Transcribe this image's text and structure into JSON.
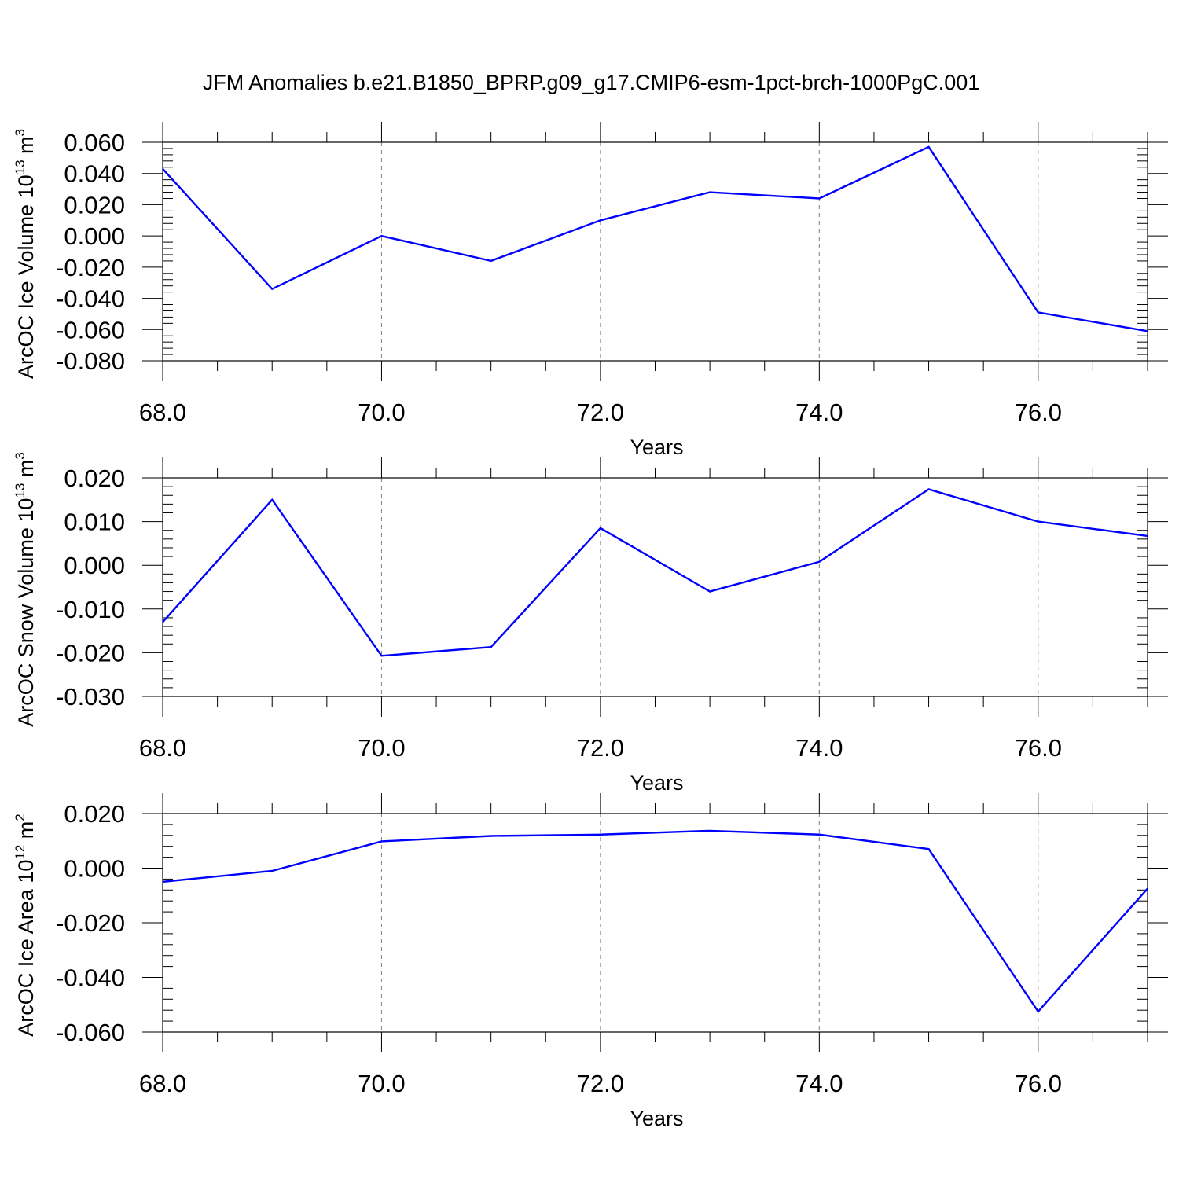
{
  "title": "JFM Anomalies b.e21.B1850_BPRP.g09_g17.CMIP6-esm-1pct-brch-1000PgC.001",
  "colors": {
    "line": "#0000ff",
    "axis": "#000000",
    "grid": "#808080",
    "background": "#ffffff"
  },
  "chart_data": [
    {
      "type": "line",
      "xlabel": "Years",
      "ylabel": {
        "prefix": "ArcOC Ice Volume 10",
        "exponent": "13",
        "unit": " m",
        "unit_exponent": "3"
      },
      "x": [
        68,
        69,
        70,
        71,
        72,
        73,
        74,
        75,
        76,
        77
      ],
      "xlim": [
        68,
        77
      ],
      "x_ticks": [
        "68.0",
        "70.0",
        "72.0",
        "74.0",
        "76.0"
      ],
      "x_tick_values": [
        68,
        70,
        72,
        74,
        76
      ],
      "ylim": [
        -0.08,
        0.06
      ],
      "y_ticks": [
        "0.060",
        "0.040",
        "0.020",
        "0.000",
        "-0.020",
        "-0.040",
        "-0.060",
        "-0.080"
      ],
      "y_tick_values": [
        0.06,
        0.04,
        0.02,
        0.0,
        -0.02,
        -0.04,
        -0.06,
        -0.08
      ],
      "vertical_dashed_grid": true,
      "series": [
        {
          "values": [
            0.043,
            -0.034,
            0.0,
            -0.016,
            0.01,
            0.028,
            0.024,
            0.057,
            -0.049,
            -0.061
          ]
        }
      ]
    },
    {
      "type": "line",
      "xlabel": "Years",
      "ylabel": {
        "prefix": "ArcOC Snow Volume 10",
        "exponent": "13",
        "unit": " m",
        "unit_exponent": "3"
      },
      "x": [
        68,
        69,
        70,
        71,
        72,
        73,
        74,
        75,
        76,
        77
      ],
      "xlim": [
        68,
        77
      ],
      "x_ticks": [
        "68.0",
        "70.0",
        "72.0",
        "74.0",
        "76.0"
      ],
      "x_tick_values": [
        68,
        70,
        72,
        74,
        76
      ],
      "ylim": [
        -0.03,
        0.02
      ],
      "y_ticks": [
        "0.020",
        "0.010",
        "0.000",
        "-0.010",
        "-0.020",
        "-0.030"
      ],
      "y_tick_values": [
        0.02,
        0.01,
        0.0,
        -0.01,
        -0.02,
        -0.03
      ],
      "vertical_dashed_grid": true,
      "series": [
        {
          "values": [
            -0.013,
            0.015,
            -0.0207,
            -0.0187,
            0.0085,
            -0.006,
            0.0008,
            0.0174,
            0.01,
            0.0067
          ]
        }
      ]
    },
    {
      "type": "line",
      "xlabel": "Years",
      "ylabel": {
        "prefix": "ArcOC Ice Area 10",
        "exponent": "12",
        "unit": " m",
        "unit_exponent": "2"
      },
      "x": [
        68,
        69,
        70,
        71,
        72,
        73,
        74,
        75,
        76,
        77
      ],
      "xlim": [
        68,
        77
      ],
      "x_ticks": [
        "68.0",
        "70.0",
        "72.0",
        "74.0",
        "76.0"
      ],
      "x_tick_values": [
        68,
        70,
        72,
        74,
        76
      ],
      "ylim": [
        -0.06,
        0.02
      ],
      "y_ticks": [
        "0.020",
        "0.000",
        "-0.020",
        "-0.040",
        "-0.060"
      ],
      "y_tick_values": [
        0.02,
        0.0,
        -0.02,
        -0.04,
        -0.06
      ],
      "vertical_dashed_grid": true,
      "series": [
        {
          "values": [
            -0.005,
            -0.001,
            0.0098,
            0.0118,
            0.0123,
            0.0137,
            0.0123,
            0.007,
            -0.0525,
            -0.0075
          ]
        }
      ]
    }
  ]
}
